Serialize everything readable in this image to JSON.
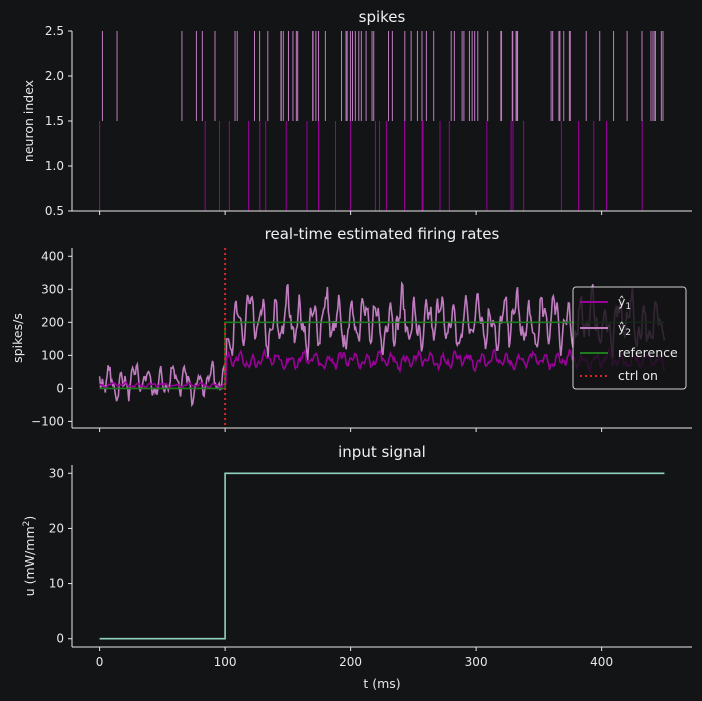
{
  "chart_data": [
    {
      "type": "raster",
      "title": "spikes",
      "xlabel": "",
      "ylabel": "neuron index",
      "xlim": [
        -22,
        472
      ],
      "ylim": [
        0.5,
        2.5
      ],
      "yticks": [
        "0.5",
        "1.0",
        "1.5",
        "2.0",
        "2.5"
      ],
      "rows": [
        {
          "neuron": 1,
          "color": "#9b009b",
          "rate_before_ctrl": 30,
          "rate_after_ctrl": 85
        },
        {
          "neuron": 2,
          "color": "#bf7cbf",
          "rate_before_ctrl": 35,
          "rate_after_ctrl": 200
        }
      ],
      "t_start": 0,
      "t_end": 450
    },
    {
      "type": "line",
      "title": "real-time estimated firing rates",
      "xlabel": "",
      "ylabel": "spikes/s",
      "xlim": [
        -22,
        472
      ],
      "ylim": [
        -120,
        425
      ],
      "yticks": [
        "−100",
        "0",
        "100",
        "200",
        "300",
        "400"
      ],
      "series": [
        {
          "name": "ŷ",
          "sub": "1",
          "color": "#9b009b",
          "before": 10,
          "after": 85
        },
        {
          "name": "ŷ",
          "sub": "2",
          "color": "#bf7cbf",
          "before": 20,
          "after": 200
        },
        {
          "name": "reference",
          "color": "#1f7a1f",
          "points": [
            [
              0,
              0
            ],
            [
              100,
              0
            ],
            [
              100,
              200
            ],
            [
              450,
              200
            ]
          ]
        },
        {
          "name": "ctrl on",
          "color": "#d62728",
          "style": "dotted",
          "x": 100
        }
      ],
      "legend_position": "right"
    },
    {
      "type": "line",
      "title": "input signal",
      "xlabel": "t (ms)",
      "ylabel": "u (mW/mm",
      "ylabel_sup": "2",
      "ylabel_end": ")",
      "xlim": [
        -22,
        472
      ],
      "ylim": [
        -1.5,
        31.5
      ],
      "xticks": [
        "0",
        "100",
        "200",
        "300",
        "400"
      ],
      "yticks": [
        "0",
        "10",
        "20",
        "30"
      ],
      "series": [
        {
          "name": "u",
          "color": "#8fd3c0",
          "points": [
            [
              0,
              0
            ],
            [
              100,
              0
            ],
            [
              100,
              30
            ],
            [
              450,
              30
            ]
          ]
        }
      ]
    }
  ]
}
